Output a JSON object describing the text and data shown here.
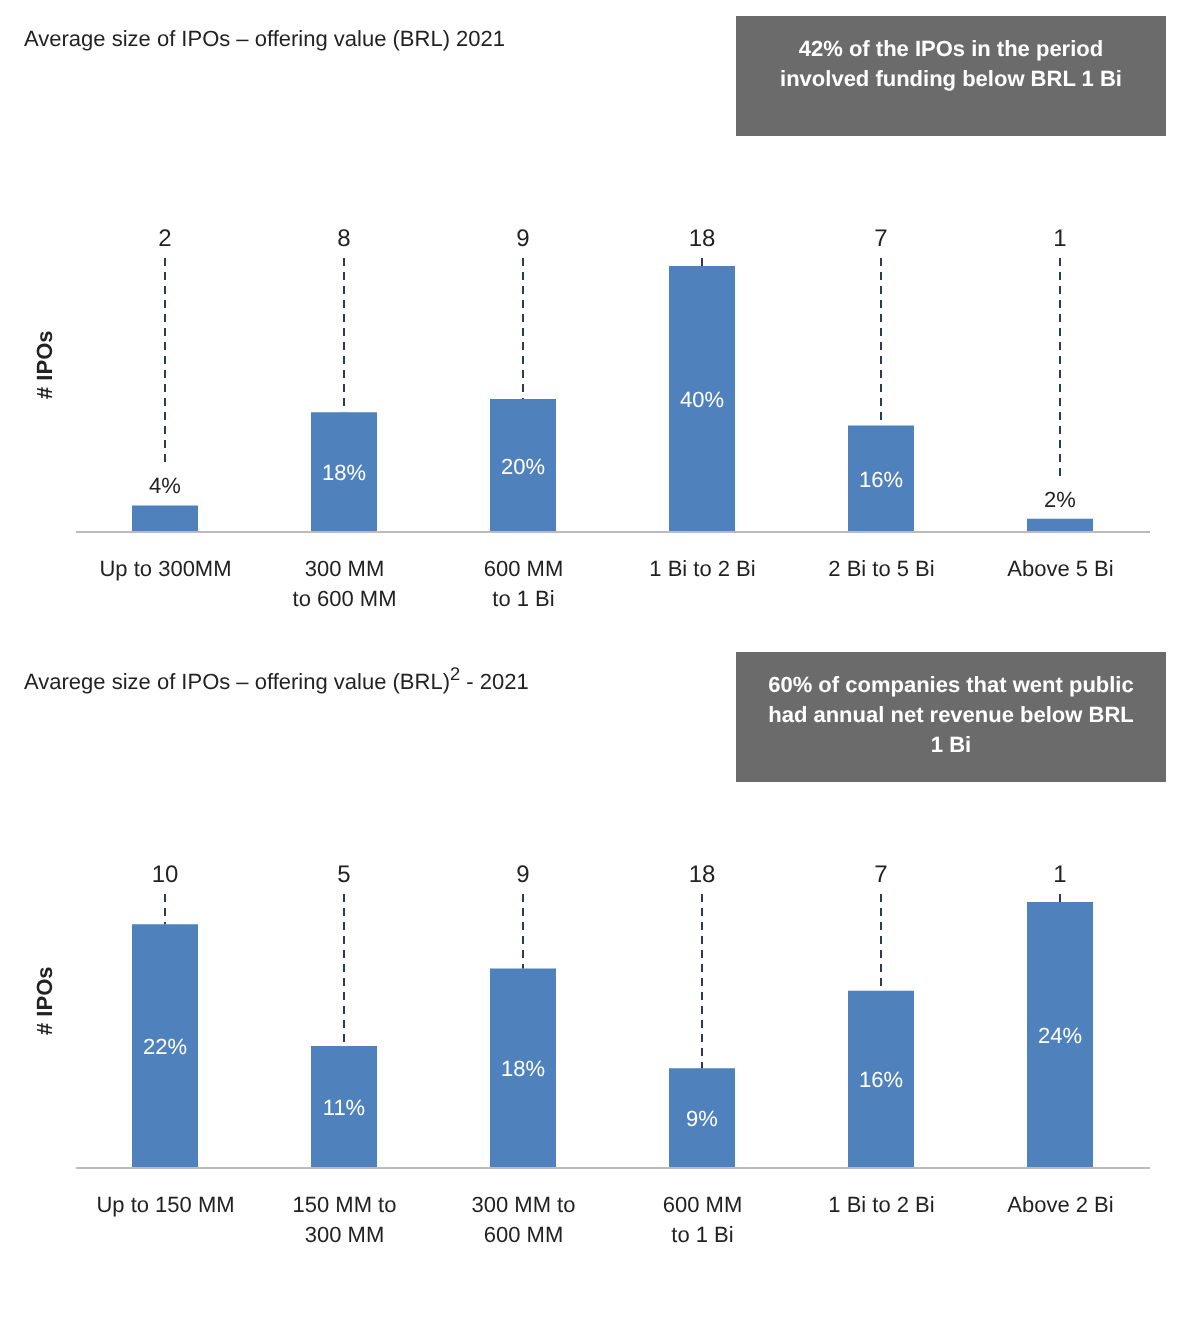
{
  "chart_data": [
    {
      "type": "bar",
      "title": "Average size of IPOs – offering value (BRL) 2021",
      "ylabel": "# IPOs",
      "categories": [
        "Up to 300MM",
        "300 MM\nto 600 MM",
        "600 MM\nto 1 Bi",
        "1 Bi to 2 Bi",
        "2 Bi to 5 Bi",
        "Above 5 Bi"
      ],
      "values": [
        4,
        18,
        20,
        40,
        16,
        2
      ],
      "color": "#4f81bd",
      "value_labels": [
        "4%",
        "18%",
        "20%",
        "40%",
        "16%",
        "2%"
      ],
      "annotations": [
        "42% of the IPOs in the period involved funding below BRL 1 Bi",
        "2",
        "8",
        "9",
        "18",
        "7",
        "1"
      ]
    },
    {
      "type": "bar",
      "title": "Avarege size of IPOs – offering value (BRL)$^{2}$ - 2021",
      "ylabel": "# IPOs",
      "categories": [
        "Up to 150 MM",
        "150 MM to\n300 MM",
        "300 MM to\n600 MM",
        "600 MM\nto 1 Bi",
        "1 Bi to 2 Bi",
        "Above 2 Bi"
      ],
      "values": [
        22,
        11,
        18,
        9,
        16,
        24
      ],
      "color": "#4f81bd",
      "value_labels": [
        "22%",
        "11%",
        "18%",
        "9%",
        "16%",
        "24%"
      ],
      "annotations": [
        "60% of companies that went public had annual net revenue below BRL 1 Bi",
        "10",
        "5",
        "9",
        "18",
        "7",
        "1"
      ]
    }
  ]
}
